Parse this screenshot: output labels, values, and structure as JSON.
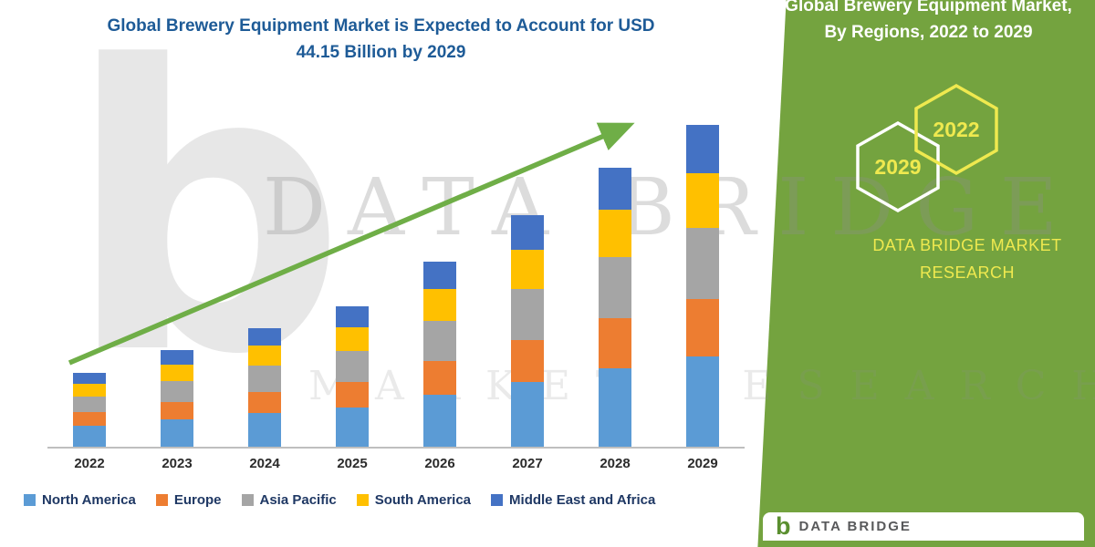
{
  "title": {
    "line1": "Global Brewery Equipment Market is Expected to Account for USD",
    "line2": "44.15 Billion by 2029",
    "color": "#1E5B97"
  },
  "side_panel": {
    "bg_color": "#74A33F",
    "accent_yellow": "#EFE94F",
    "heading_line1": "Global Brewery Equipment Market,",
    "heading_line2": "By Regions, 2022 to 2029",
    "hexagons": [
      {
        "label": "2029",
        "border": "#FFFFFF"
      },
      {
        "label": "2022",
        "border": "#EFE94F"
      }
    ],
    "brand_line1": "DATA BRIDGE MARKET",
    "brand_line2": "RESEARCH"
  },
  "watermark": {
    "logo_glyph": "b",
    "line1": "DATA BRIDGE",
    "line2": "MARKET RESEARCH"
  },
  "footer_logo": {
    "glyph": "b",
    "name": "DATA BRIDGE"
  },
  "chart_data": {
    "type": "bar",
    "stacked": true,
    "title": "Global Brewery Equipment Market is Expected to Account for USD 44.15 Billion by 2029",
    "categories": [
      "2022",
      "2023",
      "2024",
      "2025",
      "2026",
      "2027",
      "2028",
      "2029"
    ],
    "series": [
      {
        "name": "North America",
        "color": "#5B9BD5",
        "values": [
          2.9,
          3.7,
          4.6,
          5.4,
          7.1,
          8.9,
          10.7,
          12.4
        ]
      },
      {
        "name": "Europe",
        "color": "#ED7D31",
        "values": [
          1.8,
          2.4,
          2.9,
          3.5,
          4.6,
          5.7,
          6.9,
          7.9
        ]
      },
      {
        "name": "Asia Pacific",
        "color": "#A5A5A5",
        "values": [
          2.2,
          2.9,
          3.6,
          4.2,
          5.6,
          7.0,
          8.4,
          9.7
        ]
      },
      {
        "name": "South America",
        "color": "#FFC000",
        "values": [
          1.7,
          2.2,
          2.8,
          3.3,
          4.3,
          5.4,
          6.5,
          7.5
        ]
      },
      {
        "name": "Middle East and Africa",
        "color": "#4472C4",
        "values": [
          1.5,
          2.0,
          2.4,
          2.9,
          3.8,
          4.8,
          5.7,
          6.6
        ]
      }
    ],
    "totals": [
      10.1,
      13.2,
      16.3,
      19.3,
      25.4,
      31.8,
      38.2,
      44.1
    ],
    "ylim": [
      0,
      46
    ],
    "gridlines": false,
    "legend_position": "bottom",
    "trendline": {
      "show": true,
      "color": "#6FAE47"
    }
  }
}
